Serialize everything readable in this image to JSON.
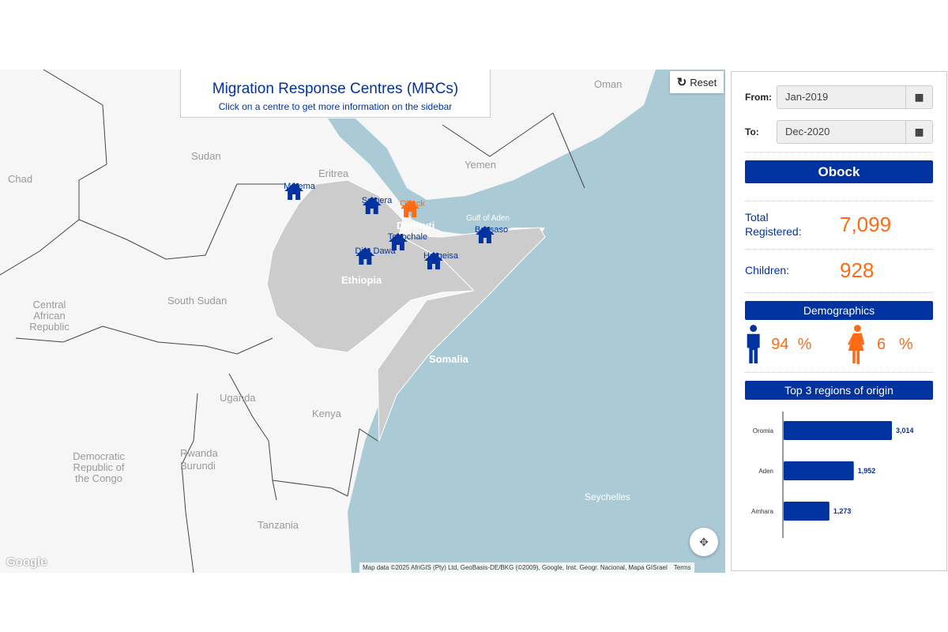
{
  "map": {
    "title": "Migration Response Centres (MRCs)",
    "subtitle": "Click on a centre to get more information on the sidebar",
    "reset_label": "Reset",
    "attribution": "Map data ©2025 AfriGIS (Pty) Ltd, GeoBasis-DE/BKG (©2009), Google, Inst. Geogr. Nacional, Mapa GISrael",
    "terms": "Terms",
    "logo": "Google",
    "colors": {
      "sea": "#aacbd5",
      "land": "#f6f6f6",
      "highlight": "#cccccc",
      "marker": "#0033a0",
      "selected": "#ff6a13"
    },
    "places": [
      {
        "name": "Oman"
      },
      {
        "name": "Sudan"
      },
      {
        "name": "Chad"
      },
      {
        "name": "Eritrea"
      },
      {
        "name": "Yemen"
      },
      {
        "name": "Djibouti"
      },
      {
        "name": "Ethiopia"
      },
      {
        "name": "Central African Republic"
      },
      {
        "name": "South Sudan"
      },
      {
        "name": "Somalia"
      },
      {
        "name": "Uganda"
      },
      {
        "name": "Kenya"
      },
      {
        "name": "Democratic Republic of the Congo"
      },
      {
        "name": "Rwanda"
      },
      {
        "name": "Burundi"
      },
      {
        "name": "Tanzania"
      },
      {
        "name": "Seychelles"
      },
      {
        "name": "Gulf of Aden"
      }
    ],
    "centres": [
      {
        "name": "Metema",
        "selected": false
      },
      {
        "name": "Semera",
        "selected": false
      },
      {
        "name": "Obock",
        "selected": true
      },
      {
        "name": "Togochale",
        "selected": false
      },
      {
        "name": "Dire Dawa",
        "selected": false
      },
      {
        "name": "Hargeisa",
        "selected": false
      },
      {
        "name": "Bossaso",
        "selected": false
      }
    ]
  },
  "sidebar": {
    "from_label": "From:",
    "from_value": "Jan-2019",
    "to_label": "To:",
    "to_value": "Dec-2020",
    "centre_name": "Obock",
    "total_label": "Total Registered:",
    "total_value": "7,099",
    "children_label": "Children:",
    "children_value": "928",
    "demographics_title": "Demographics",
    "male_pct": "94",
    "female_pct": "6",
    "pct_sign": "%",
    "regions_title": "Top 3 regions of origin"
  },
  "chart_data": {
    "type": "bar",
    "orientation": "horizontal",
    "categories": [
      "Oromia",
      "Aden",
      "Amhara"
    ],
    "values": [
      3014,
      1952,
      1273
    ],
    "value_labels": [
      "3,014",
      "1,952",
      "1,273"
    ],
    "color": "#0033a0"
  }
}
